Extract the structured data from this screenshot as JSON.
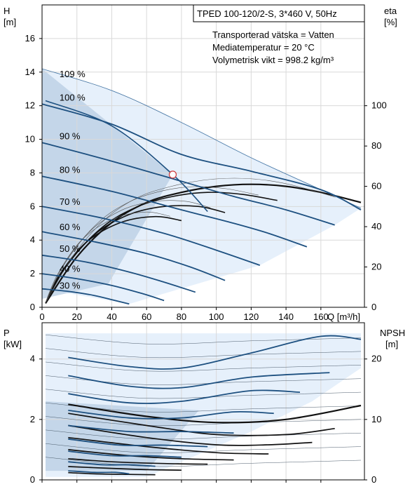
{
  "chart_data": [
    {
      "type": "line",
      "title": "TPED 100-120/2-S, 3*460 V, 50Hz",
      "info_lines": [
        "Transporterad vätska = Vatten",
        "Mediatemperatur = 20 °C",
        "Volymetrisk vikt = 998.2 kg/m³"
      ],
      "xlabel": "Q [m³/h]",
      "ylabel": [
        "H",
        "[m]"
      ],
      "y2label": [
        "eta",
        "[%]"
      ],
      "xlim": [
        0,
        185
      ],
      "ylim": [
        0,
        18
      ],
      "y2lim": [
        0,
        150
      ],
      "x_ticks": [
        0,
        20,
        40,
        60,
        80,
        100,
        120,
        140,
        160
      ],
      "y_ticks": [
        0,
        2,
        4,
        6,
        8,
        10,
        12,
        14,
        16
      ],
      "y2_ticks": [
        0,
        20,
        40,
        60,
        80,
        100
      ],
      "grid": true,
      "speed_labels": [
        {
          "text": "109 %",
          "x": 10,
          "y": 13.7
        },
        {
          "text": "100 %",
          "x": 10,
          "y": 12.3
        },
        {
          "text": "90 %",
          "x": 10,
          "y": 10.0
        },
        {
          "text": "80 %",
          "x": 10,
          "y": 8.0
        },
        {
          "text": "70 %",
          "x": 10,
          "y": 6.1
        },
        {
          "text": "60 %",
          "x": 10,
          "y": 4.6
        },
        {
          "text": "50 %",
          "x": 10,
          "y": 3.3
        },
        {
          "text": "40 %",
          "x": 10,
          "y": 2.1
        },
        {
          "text": "30 %",
          "x": 10,
          "y": 1.1
        }
      ],
      "head_curves": [
        {
          "speed": 109,
          "points": [
            [
              0,
              14.2
            ],
            [
              40,
              12.9
            ],
            [
              80,
              11.0
            ],
            [
              120,
              8.9
            ],
            [
              160,
              7.0
            ],
            [
              183,
              5.9
            ]
          ]
        },
        {
          "speed": 100,
          "points": [
            [
              0,
              12.1
            ],
            [
              40,
              10.9
            ],
            [
              80,
              9.1
            ],
            [
              120,
              8.1
            ],
            [
              160,
              7.0
            ],
            [
              183,
              5.8
            ]
          ]
        },
        {
          "speed": 90,
          "points": [
            [
              0,
              9.8
            ],
            [
              40,
              8.7
            ],
            [
              80,
              7.5
            ],
            [
              110,
              6.6
            ],
            [
              140,
              5.8
            ],
            [
              168,
              4.9
            ]
          ]
        },
        {
          "speed": 80,
          "points": [
            [
              0,
              7.8
            ],
            [
              40,
              6.9
            ],
            [
              80,
              5.8
            ],
            [
              110,
              5.0
            ],
            [
              130,
              4.4
            ],
            [
              152,
              3.6
            ]
          ]
        },
        {
          "speed": 70,
          "points": [
            [
              0,
              6.0
            ],
            [
              35,
              5.3
            ],
            [
              70,
              4.4
            ],
            [
              100,
              3.4
            ],
            [
              125,
              2.5
            ]
          ]
        },
        {
          "speed": 60,
          "points": [
            [
              0,
              4.5
            ],
            [
              30,
              3.9
            ],
            [
              60,
              3.2
            ],
            [
              85,
              2.4
            ],
            [
              105,
              1.6
            ]
          ]
        },
        {
          "speed": 50,
          "points": [
            [
              0,
              3.1
            ],
            [
              25,
              2.7
            ],
            [
              50,
              2.1
            ],
            [
              70,
              1.5
            ],
            [
              88,
              0.9
            ]
          ]
        },
        {
          "speed": 40,
          "points": [
            [
              0,
              2.0
            ],
            [
              20,
              1.7
            ],
            [
              40,
              1.3
            ],
            [
              58,
              0.8
            ],
            [
              70,
              0.4
            ]
          ]
        },
        {
          "speed": 30,
          "points": [
            [
              0,
              1.1
            ],
            [
              15,
              0.95
            ],
            [
              30,
              0.7
            ],
            [
              42,
              0.4
            ],
            [
              50,
              0.2
            ]
          ]
        }
      ],
      "eta_curves": [
        {
          "points": [
            [
              2,
              2
            ],
            [
              20,
              25
            ],
            [
              40,
              42
            ],
            [
              60,
              52
            ],
            [
              80,
              57
            ],
            [
              100,
              60
            ],
            [
              120,
              61
            ],
            [
              140,
              60
            ],
            [
              160,
              57
            ],
            [
              183,
              52
            ]
          ]
        },
        {
          "points": [
            [
              2,
              2
            ],
            [
              15,
              22
            ],
            [
              35,
              40
            ],
            [
              55,
              50
            ],
            [
              75,
              55
            ],
            [
              95,
              57
            ],
            [
              115,
              56
            ],
            [
              135,
              53
            ]
          ]
        },
        {
          "points": [
            [
              2,
              2
            ],
            [
              12,
              18
            ],
            [
              30,
              36
            ],
            [
              50,
              46
            ],
            [
              70,
              50
            ],
            [
              90,
              50
            ],
            [
              105,
              47
            ]
          ]
        },
        {
          "points": [
            [
              2,
              2
            ],
            [
              10,
              16
            ],
            [
              25,
              32
            ],
            [
              45,
              42
            ],
            [
              65,
              45
            ],
            [
              80,
              43
            ]
          ]
        }
      ],
      "duty_point": {
        "x": 75,
        "y": 7.9
      }
    },
    {
      "type": "line",
      "ylabel": [
        "P",
        "[kW]"
      ],
      "y2label": [
        "NPSH",
        "[m]"
      ],
      "xlim": [
        0,
        185
      ],
      "ylim": [
        0,
        5.2
      ],
      "y2lim": [
        0,
        26
      ],
      "y_ticks": [
        0,
        2,
        4
      ],
      "y2_ticks": [
        0,
        10,
        20
      ],
      "grid": true,
      "power_curves": [
        {
          "speed": 109,
          "points": [
            [
              15,
              4.05
            ],
            [
              50,
              3.75
            ],
            [
              80,
              3.7
            ],
            [
              120,
              4.2
            ],
            [
              160,
              4.75
            ],
            [
              183,
              4.65
            ]
          ]
        },
        {
          "speed": 100,
          "points": [
            [
              15,
              3.45
            ],
            [
              50,
              3.1
            ],
            [
              80,
              3.05
            ],
            [
              120,
              3.4
            ],
            [
              165,
              3.55
            ]
          ]
        },
        {
          "speed": 90,
          "points": [
            [
              15,
              2.85
            ],
            [
              50,
              2.55
            ],
            [
              80,
              2.6
            ],
            [
              120,
              2.95
            ],
            [
              148,
              2.9
            ]
          ]
        },
        {
          "speed": 80,
          "points": [
            [
              15,
              2.3
            ],
            [
              50,
              2.05
            ],
            [
              80,
              2.05
            ],
            [
              110,
              2.25
            ],
            [
              133,
              2.2
            ]
          ]
        },
        {
          "speed": 70,
          "points": [
            [
              15,
              1.8
            ],
            [
              50,
              1.6
            ],
            [
              80,
              1.6
            ],
            [
              110,
              1.55
            ]
          ]
        },
        {
          "speed": 60,
          "points": [
            [
              15,
              1.35
            ],
            [
              45,
              1.15
            ],
            [
              70,
              1.15
            ],
            [
              95,
              1.1
            ]
          ]
        },
        {
          "speed": 50,
          "points": [
            [
              15,
              0.95
            ],
            [
              40,
              0.8
            ],
            [
              60,
              0.8
            ],
            [
              80,
              0.75
            ]
          ]
        },
        {
          "speed": 40,
          "points": [
            [
              15,
              0.6
            ],
            [
              35,
              0.5
            ],
            [
              50,
              0.5
            ],
            [
              65,
              0.45
            ]
          ]
        },
        {
          "speed": 30,
          "points": [
            [
              15,
              0.3
            ],
            [
              30,
              0.25
            ],
            [
              42,
              0.25
            ],
            [
              50,
              0.2
            ]
          ]
        }
      ],
      "npsh_curves": [
        {
          "points": [
            [
              15,
              12.5
            ],
            [
              60,
              10.5
            ],
            [
              100,
              9.5
            ],
            [
              140,
              10.0
            ],
            [
              183,
              12.3
            ]
          ]
        },
        {
          "points": [
            [
              15,
              11.0
            ],
            [
              60,
              9.0
            ],
            [
              100,
              7.5
            ],
            [
              140,
              7.5
            ],
            [
              168,
              8.5
            ]
          ]
        },
        {
          "points": [
            [
              15,
              9.0
            ],
            [
              60,
              7.0
            ],
            [
              100,
              5.8
            ],
            [
              130,
              5.8
            ],
            [
              155,
              6.2
            ]
          ]
        },
        {
          "points": [
            [
              15,
              7.0
            ],
            [
              60,
              5.5
            ],
            [
              100,
              4.5
            ],
            [
              130,
              4.3
            ]
          ]
        },
        {
          "points": [
            [
              15,
              5.0
            ],
            [
              50,
              4.0
            ],
            [
              80,
              3.5
            ],
            [
              110,
              3.3
            ]
          ]
        },
        {
          "points": [
            [
              15,
              3.5
            ],
            [
              40,
              3.0
            ],
            [
              70,
              2.7
            ],
            [
              95,
              2.6
            ]
          ]
        },
        {
          "points": [
            [
              15,
              2.2
            ],
            [
              40,
              1.9
            ],
            [
              60,
              1.7
            ],
            [
              80,
              1.6
            ]
          ]
        },
        {
          "points": [
            [
              15,
              1.2
            ],
            [
              30,
              1.0
            ],
            [
              50,
              0.9
            ],
            [
              65,
              0.85
            ]
          ]
        }
      ]
    }
  ]
}
